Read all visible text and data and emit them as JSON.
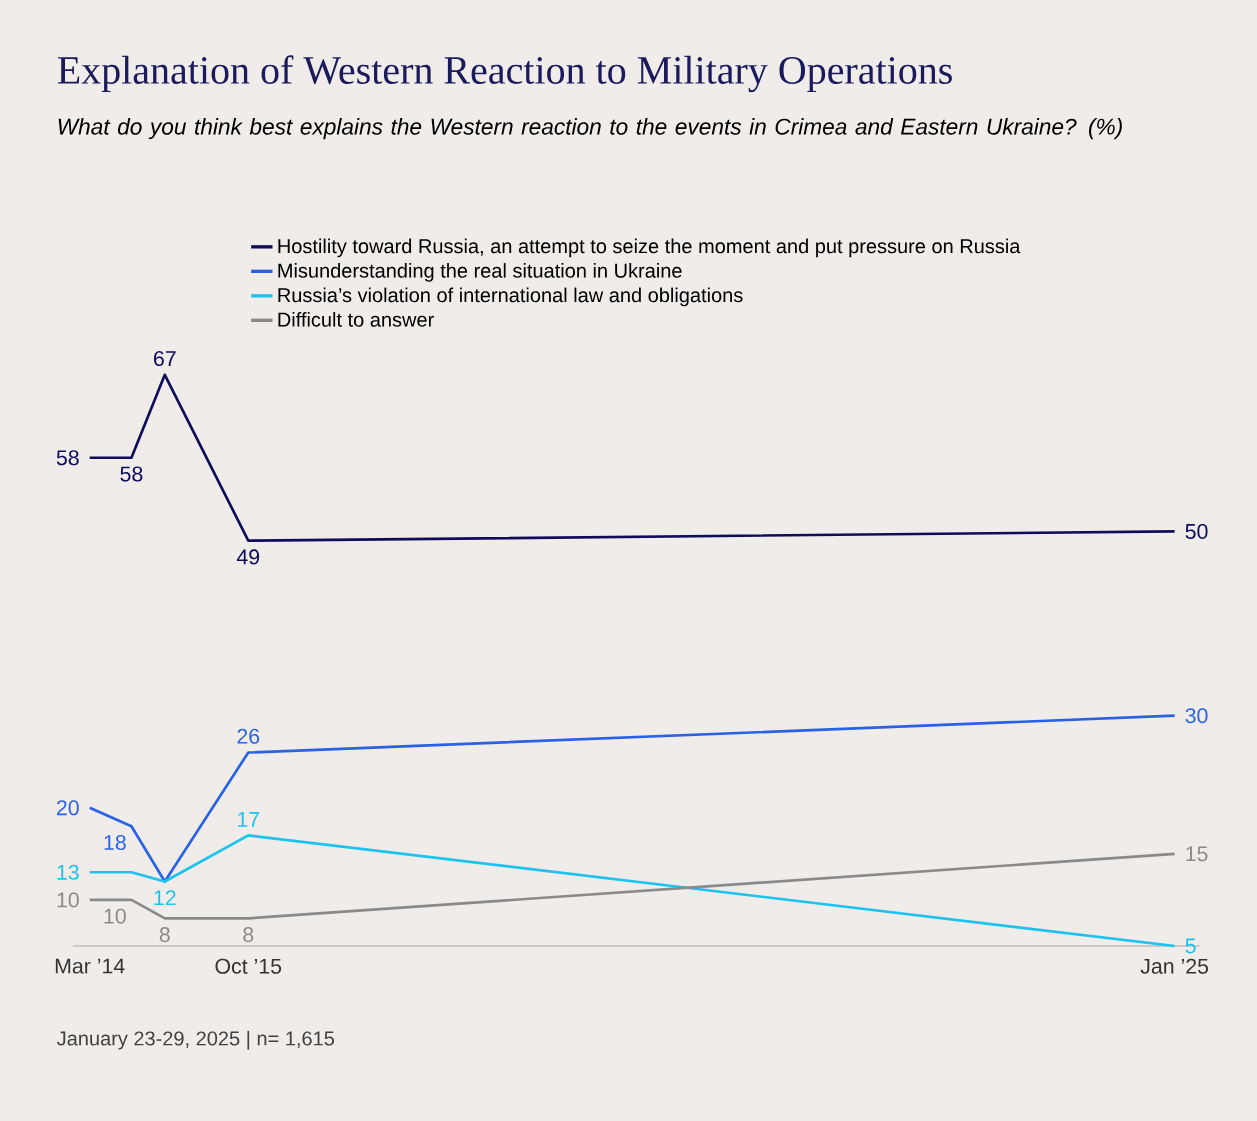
{
  "chart_data": {
    "type": "line",
    "title": "Explanation of Western Reaction to Military Operations",
    "subtitle": "What do you think best explains the Western reaction to the events in Crimea and Eastern Ukraine? (%)",
    "x": [
      "2014-03",
      "2014-08",
      "2014-12",
      "2015-10",
      "2025-01"
    ],
    "xlim": [
      "2014-01",
      "2025-04"
    ],
    "xticks": [
      {
        "value": "2014-03",
        "label": "Mar ’14"
      },
      {
        "value": "2015-10",
        "label": "Oct ’15"
      },
      {
        "value": "2025-01",
        "label": "Jan ’25"
      }
    ],
    "series": [
      {
        "name": "Hostility toward Russia, an attempt to seize the moment and put pressure on Russia",
        "color": "#0d0d5c",
        "values": [
          58,
          58,
          67,
          49,
          50
        ],
        "value_labels": [
          "58",
          "58",
          "67",
          "49",
          "50"
        ]
      },
      {
        "name": "Misunderstanding the real situation in Ukraine",
        "color": "#2a62e6",
        "values": [
          20,
          18,
          12,
          26,
          30
        ],
        "value_labels": [
          "20",
          "18",
          null,
          "26",
          "30"
        ]
      },
      {
        "name": "Russia’s violation of international law and obligations",
        "color": "#1cc3f0",
        "values": [
          13,
          13,
          12,
          17,
          5
        ],
        "value_labels": [
          "13",
          null,
          "12",
          "17",
          "5"
        ]
      },
      {
        "name": "Difficult to answer",
        "color": "#8a8a8a",
        "values": [
          10,
          10,
          8,
          8,
          15
        ],
        "value_labels": [
          "10",
          "10",
          "8",
          "8",
          "15"
        ]
      }
    ],
    "legend": "top",
    "line_style": "solid",
    "annotations": [
      "January 23-29, 2025 | n= 1,615"
    ]
  }
}
